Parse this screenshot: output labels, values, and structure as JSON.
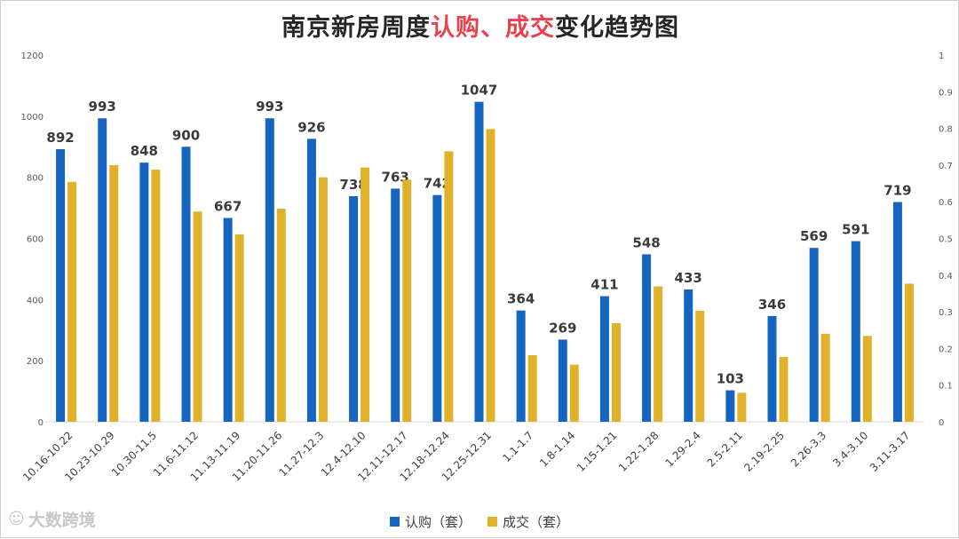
{
  "title": {
    "part1": "南京新房周度",
    "part2": "认购、成交",
    "part3": "变化趋势图"
  },
  "watermark": {
    "icon": "logo-icon",
    "text": "大数跨境"
  },
  "colors": {
    "subscription": "#1565c0",
    "transaction": "#e0b12b",
    "title_highlight": "#e8424f"
  },
  "chart_data": {
    "type": "bar",
    "title": "南京新房周度认购、成交变化趋势图",
    "categories": [
      "10.16-10.22",
      "10.23-10.29",
      "10.30-11.5",
      "11.6-11.12",
      "11.13-11.19",
      "11.20-11.26",
      "11.27-12.3",
      "12.4-12.10",
      "12.11-12.17",
      "12.18-12.24",
      "12.25-12.31",
      "1.1-1.7",
      "1.8-1.14",
      "1.15-1.21",
      "1.22-1.28",
      "1.29-2.4",
      "2.5-2.11",
      "2.19-2.25",
      "2.26-3.3",
      "3.4-3.10",
      "3.11-3.17"
    ],
    "series": [
      {
        "name": "认购（套）",
        "values": [
          892,
          993,
          848,
          900,
          667,
          993,
          926,
          738,
          763,
          742,
          1047,
          364,
          269,
          411,
          548,
          433,
          103,
          346,
          569,
          591,
          719
        ],
        "show_labels": true
      },
      {
        "name": "成交（套）",
        "values": [
          785,
          840,
          825,
          688,
          613,
          697,
          800,
          832,
          792,
          885,
          958,
          218,
          187,
          323,
          443,
          363,
          95,
          212,
          288,
          281,
          452
        ],
        "show_labels": false
      }
    ],
    "ylim": [
      0,
      1200
    ],
    "yticks": [
      "0",
      "200",
      "400",
      "600",
      "800",
      "1000",
      "1200"
    ],
    "y2lim": [
      0,
      1
    ],
    "y2ticks": [
      "0",
      "0.1",
      "0.2",
      "0.3",
      "0.4",
      "0.5",
      "0.6",
      "0.7",
      "0.8",
      "0.9",
      "1"
    ],
    "legend": "bottom-center",
    "grid": false
  }
}
